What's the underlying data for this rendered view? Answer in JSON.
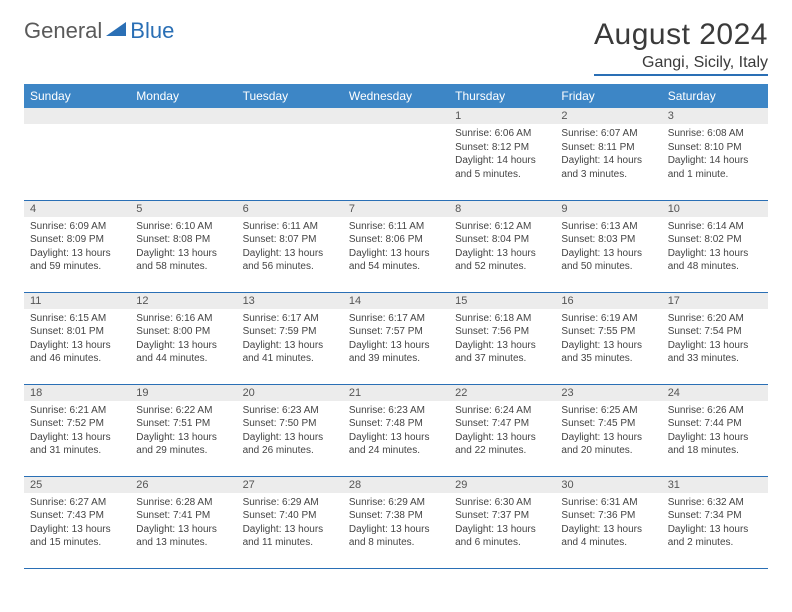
{
  "brand": {
    "part1": "General",
    "part2": "Blue"
  },
  "title": "August 2024",
  "location": "Gangi, Sicily, Italy",
  "colors": {
    "header_bg": "#3d86c6",
    "border": "#2a6fb5",
    "daynum_bg": "#ececec",
    "text": "#444444"
  },
  "day_labels": [
    "Sunday",
    "Monday",
    "Tuesday",
    "Wednesday",
    "Thursday",
    "Friday",
    "Saturday"
  ],
  "weeks": [
    [
      {
        "n": "",
        "sr": "",
        "ss": "",
        "dl": ""
      },
      {
        "n": "",
        "sr": "",
        "ss": "",
        "dl": ""
      },
      {
        "n": "",
        "sr": "",
        "ss": "",
        "dl": ""
      },
      {
        "n": "",
        "sr": "",
        "ss": "",
        "dl": ""
      },
      {
        "n": "1",
        "sr": "Sunrise: 6:06 AM",
        "ss": "Sunset: 8:12 PM",
        "dl": "Daylight: 14 hours and 5 minutes."
      },
      {
        "n": "2",
        "sr": "Sunrise: 6:07 AM",
        "ss": "Sunset: 8:11 PM",
        "dl": "Daylight: 14 hours and 3 minutes."
      },
      {
        "n": "3",
        "sr": "Sunrise: 6:08 AM",
        "ss": "Sunset: 8:10 PM",
        "dl": "Daylight: 14 hours and 1 minute."
      }
    ],
    [
      {
        "n": "4",
        "sr": "Sunrise: 6:09 AM",
        "ss": "Sunset: 8:09 PM",
        "dl": "Daylight: 13 hours and 59 minutes."
      },
      {
        "n": "5",
        "sr": "Sunrise: 6:10 AM",
        "ss": "Sunset: 8:08 PM",
        "dl": "Daylight: 13 hours and 58 minutes."
      },
      {
        "n": "6",
        "sr": "Sunrise: 6:11 AM",
        "ss": "Sunset: 8:07 PM",
        "dl": "Daylight: 13 hours and 56 minutes."
      },
      {
        "n": "7",
        "sr": "Sunrise: 6:11 AM",
        "ss": "Sunset: 8:06 PM",
        "dl": "Daylight: 13 hours and 54 minutes."
      },
      {
        "n": "8",
        "sr": "Sunrise: 6:12 AM",
        "ss": "Sunset: 8:04 PM",
        "dl": "Daylight: 13 hours and 52 minutes."
      },
      {
        "n": "9",
        "sr": "Sunrise: 6:13 AM",
        "ss": "Sunset: 8:03 PM",
        "dl": "Daylight: 13 hours and 50 minutes."
      },
      {
        "n": "10",
        "sr": "Sunrise: 6:14 AM",
        "ss": "Sunset: 8:02 PM",
        "dl": "Daylight: 13 hours and 48 minutes."
      }
    ],
    [
      {
        "n": "11",
        "sr": "Sunrise: 6:15 AM",
        "ss": "Sunset: 8:01 PM",
        "dl": "Daylight: 13 hours and 46 minutes."
      },
      {
        "n": "12",
        "sr": "Sunrise: 6:16 AM",
        "ss": "Sunset: 8:00 PM",
        "dl": "Daylight: 13 hours and 44 minutes."
      },
      {
        "n": "13",
        "sr": "Sunrise: 6:17 AM",
        "ss": "Sunset: 7:59 PM",
        "dl": "Daylight: 13 hours and 41 minutes."
      },
      {
        "n": "14",
        "sr": "Sunrise: 6:17 AM",
        "ss": "Sunset: 7:57 PM",
        "dl": "Daylight: 13 hours and 39 minutes."
      },
      {
        "n": "15",
        "sr": "Sunrise: 6:18 AM",
        "ss": "Sunset: 7:56 PM",
        "dl": "Daylight: 13 hours and 37 minutes."
      },
      {
        "n": "16",
        "sr": "Sunrise: 6:19 AM",
        "ss": "Sunset: 7:55 PM",
        "dl": "Daylight: 13 hours and 35 minutes."
      },
      {
        "n": "17",
        "sr": "Sunrise: 6:20 AM",
        "ss": "Sunset: 7:54 PM",
        "dl": "Daylight: 13 hours and 33 minutes."
      }
    ],
    [
      {
        "n": "18",
        "sr": "Sunrise: 6:21 AM",
        "ss": "Sunset: 7:52 PM",
        "dl": "Daylight: 13 hours and 31 minutes."
      },
      {
        "n": "19",
        "sr": "Sunrise: 6:22 AM",
        "ss": "Sunset: 7:51 PM",
        "dl": "Daylight: 13 hours and 29 minutes."
      },
      {
        "n": "20",
        "sr": "Sunrise: 6:23 AM",
        "ss": "Sunset: 7:50 PM",
        "dl": "Daylight: 13 hours and 26 minutes."
      },
      {
        "n": "21",
        "sr": "Sunrise: 6:23 AM",
        "ss": "Sunset: 7:48 PM",
        "dl": "Daylight: 13 hours and 24 minutes."
      },
      {
        "n": "22",
        "sr": "Sunrise: 6:24 AM",
        "ss": "Sunset: 7:47 PM",
        "dl": "Daylight: 13 hours and 22 minutes."
      },
      {
        "n": "23",
        "sr": "Sunrise: 6:25 AM",
        "ss": "Sunset: 7:45 PM",
        "dl": "Daylight: 13 hours and 20 minutes."
      },
      {
        "n": "24",
        "sr": "Sunrise: 6:26 AM",
        "ss": "Sunset: 7:44 PM",
        "dl": "Daylight: 13 hours and 18 minutes."
      }
    ],
    [
      {
        "n": "25",
        "sr": "Sunrise: 6:27 AM",
        "ss": "Sunset: 7:43 PM",
        "dl": "Daylight: 13 hours and 15 minutes."
      },
      {
        "n": "26",
        "sr": "Sunrise: 6:28 AM",
        "ss": "Sunset: 7:41 PM",
        "dl": "Daylight: 13 hours and 13 minutes."
      },
      {
        "n": "27",
        "sr": "Sunrise: 6:29 AM",
        "ss": "Sunset: 7:40 PM",
        "dl": "Daylight: 13 hours and 11 minutes."
      },
      {
        "n": "28",
        "sr": "Sunrise: 6:29 AM",
        "ss": "Sunset: 7:38 PM",
        "dl": "Daylight: 13 hours and 8 minutes."
      },
      {
        "n": "29",
        "sr": "Sunrise: 6:30 AM",
        "ss": "Sunset: 7:37 PM",
        "dl": "Daylight: 13 hours and 6 minutes."
      },
      {
        "n": "30",
        "sr": "Sunrise: 6:31 AM",
        "ss": "Sunset: 7:36 PM",
        "dl": "Daylight: 13 hours and 4 minutes."
      },
      {
        "n": "31",
        "sr": "Sunrise: 6:32 AM",
        "ss": "Sunset: 7:34 PM",
        "dl": "Daylight: 13 hours and 2 minutes."
      }
    ]
  ]
}
